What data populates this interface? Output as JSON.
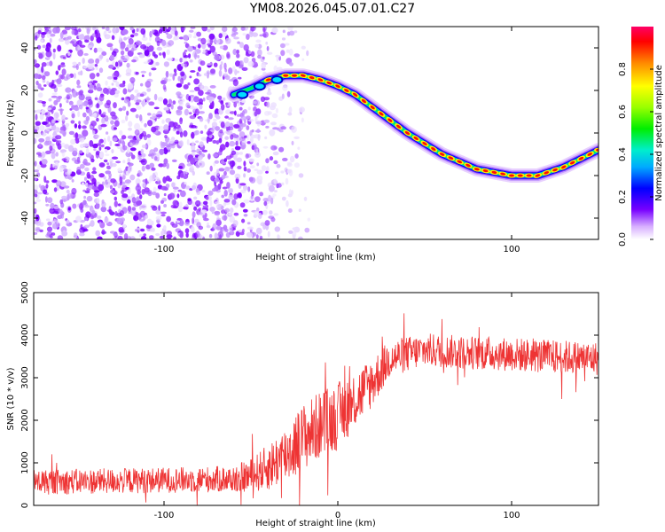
{
  "title": "YM08.2026.045.07.01.C27",
  "chart_data": [
    {
      "type": "heatmap",
      "title": "",
      "xlabel": "Height of straight line (km)",
      "ylabel": "Frequency (Hz)",
      "xlim": [
        -175,
        150
      ],
      "ylim": [
        -50,
        50
      ],
      "xticks": [
        -100,
        0,
        100
      ],
      "yticks": [
        -40,
        -20,
        0,
        20,
        40
      ],
      "colorbar": {
        "label": "Normalized spectral amplitude",
        "range": [
          0,
          1
        ],
        "ticks": [
          "0.0",
          "0.2",
          "0.4",
          "0.6",
          "0.8"
        ],
        "tick_values": [
          0.0,
          0.2,
          0.4,
          0.6,
          0.8
        ]
      },
      "noise_region_x": [
        -175,
        -40
      ],
      "ridge": {
        "description": "sinusoidal frequency ridge",
        "x": [
          -60,
          -50,
          -40,
          -30,
          -20,
          -10,
          0,
          10,
          20,
          40,
          60,
          80,
          100,
          115,
          130,
          150
        ],
        "freq": [
          18,
          21,
          25,
          27,
          27,
          25,
          22,
          18,
          12,
          0,
          -10,
          -17,
          -20,
          -20,
          -16,
          -8
        ]
      }
    },
    {
      "type": "line",
      "title": "",
      "xlabel": "Height of straight line (km)",
      "ylabel": "SNR (10 * v/v)",
      "xlim": [
        -175,
        150
      ],
      "ylim": [
        0,
        5000
      ],
      "xticks": [
        -100,
        0,
        100
      ],
      "yticks": [
        0,
        1000,
        2000,
        3000,
        4000,
        5000
      ],
      "color": "#ee3333",
      "series": [
        {
          "name": "SNR",
          "x": [
            -175,
            -150,
            -120,
            -90,
            -60,
            -50,
            -40,
            -30,
            -20,
            -10,
            0,
            10,
            20,
            30,
            50,
            70,
            100,
            120,
            150
          ],
          "center": [
            550,
            560,
            580,
            600,
            620,
            700,
            900,
            1200,
            1600,
            1900,
            2100,
            2500,
            2900,
            3450,
            3650,
            3600,
            3550,
            3500,
            3450
          ],
          "spread": [
            300,
            300,
            300,
            300,
            320,
            400,
            550,
            700,
            800,
            800,
            800,
            700,
            600,
            450,
            400,
            400,
            400,
            400,
            400
          ]
        }
      ]
    }
  ]
}
